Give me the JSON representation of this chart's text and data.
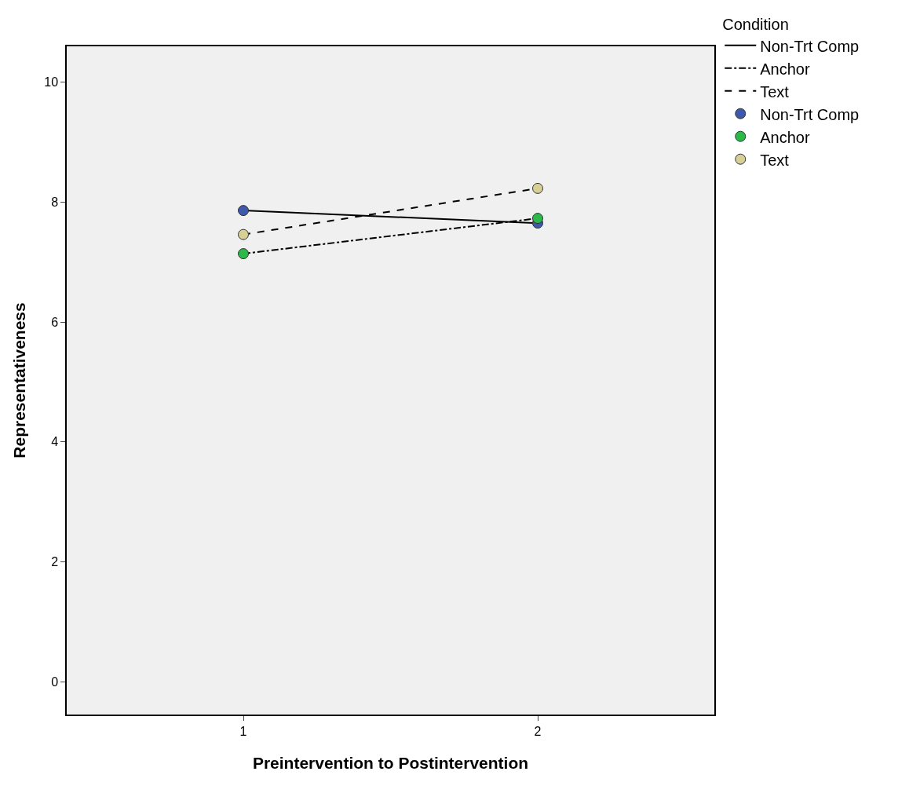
{
  "chart_data": {
    "type": "line",
    "xlabel": "Preintervention to Postintervention",
    "ylabel": "Representativeness",
    "legend_title": "Condition",
    "x": [
      1,
      2
    ],
    "xlim": [
      0.4,
      2.6
    ],
    "xticks": [
      1,
      2
    ],
    "ylim": [
      -0.55,
      10.6
    ],
    "yticks": [
      0,
      2,
      4,
      6,
      8,
      10
    ],
    "grid": false,
    "legend": "top right",
    "series": [
      {
        "name": "Non-Trt Comp",
        "type": "line",
        "color": "#000000",
        "line_style": "solid",
        "marker": "none",
        "values": [
          7.86,
          7.65
        ]
      },
      {
        "name": "Anchor",
        "type": "line",
        "color": "#000000",
        "line_style": "dashdot",
        "marker": "none",
        "values": [
          7.14,
          7.73
        ]
      },
      {
        "name": "Text",
        "type": "line",
        "color": "#000000",
        "line_style": "dashed",
        "marker": "none",
        "values": [
          7.46,
          8.23
        ]
      },
      {
        "name": "Non-Trt Comp",
        "type": "scatter",
        "color": "#3e58ac",
        "marker": "circle",
        "values": [
          7.86,
          7.65
        ]
      },
      {
        "name": "Anchor",
        "type": "scatter",
        "color": "#2db94a",
        "marker": "circle",
        "values": [
          7.14,
          7.73
        ]
      },
      {
        "name": "Text",
        "type": "scatter",
        "color": "#d6cf96",
        "marker": "circle",
        "values": [
          7.46,
          8.23
        ]
      }
    ]
  }
}
